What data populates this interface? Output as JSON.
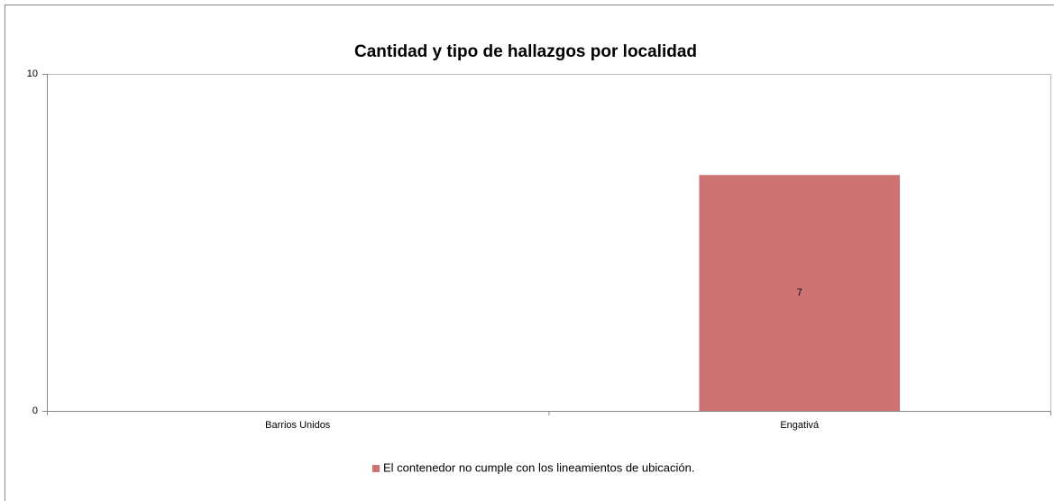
{
  "chart_data": {
    "type": "bar",
    "title": "Cantidad y tipo de hallazgos por localidad",
    "categories": [
      "Barrios Unidos",
      "Engativá"
    ],
    "series": [
      {
        "name": "El contenedor no cumple con los lineamientos de ubicación.",
        "color": "#cd7371",
        "values": [
          null,
          7
        ]
      }
    ],
    "ylim": [
      0,
      10
    ],
    "yticks": [
      0,
      10
    ],
    "grid": false,
    "legend": "bottom"
  }
}
